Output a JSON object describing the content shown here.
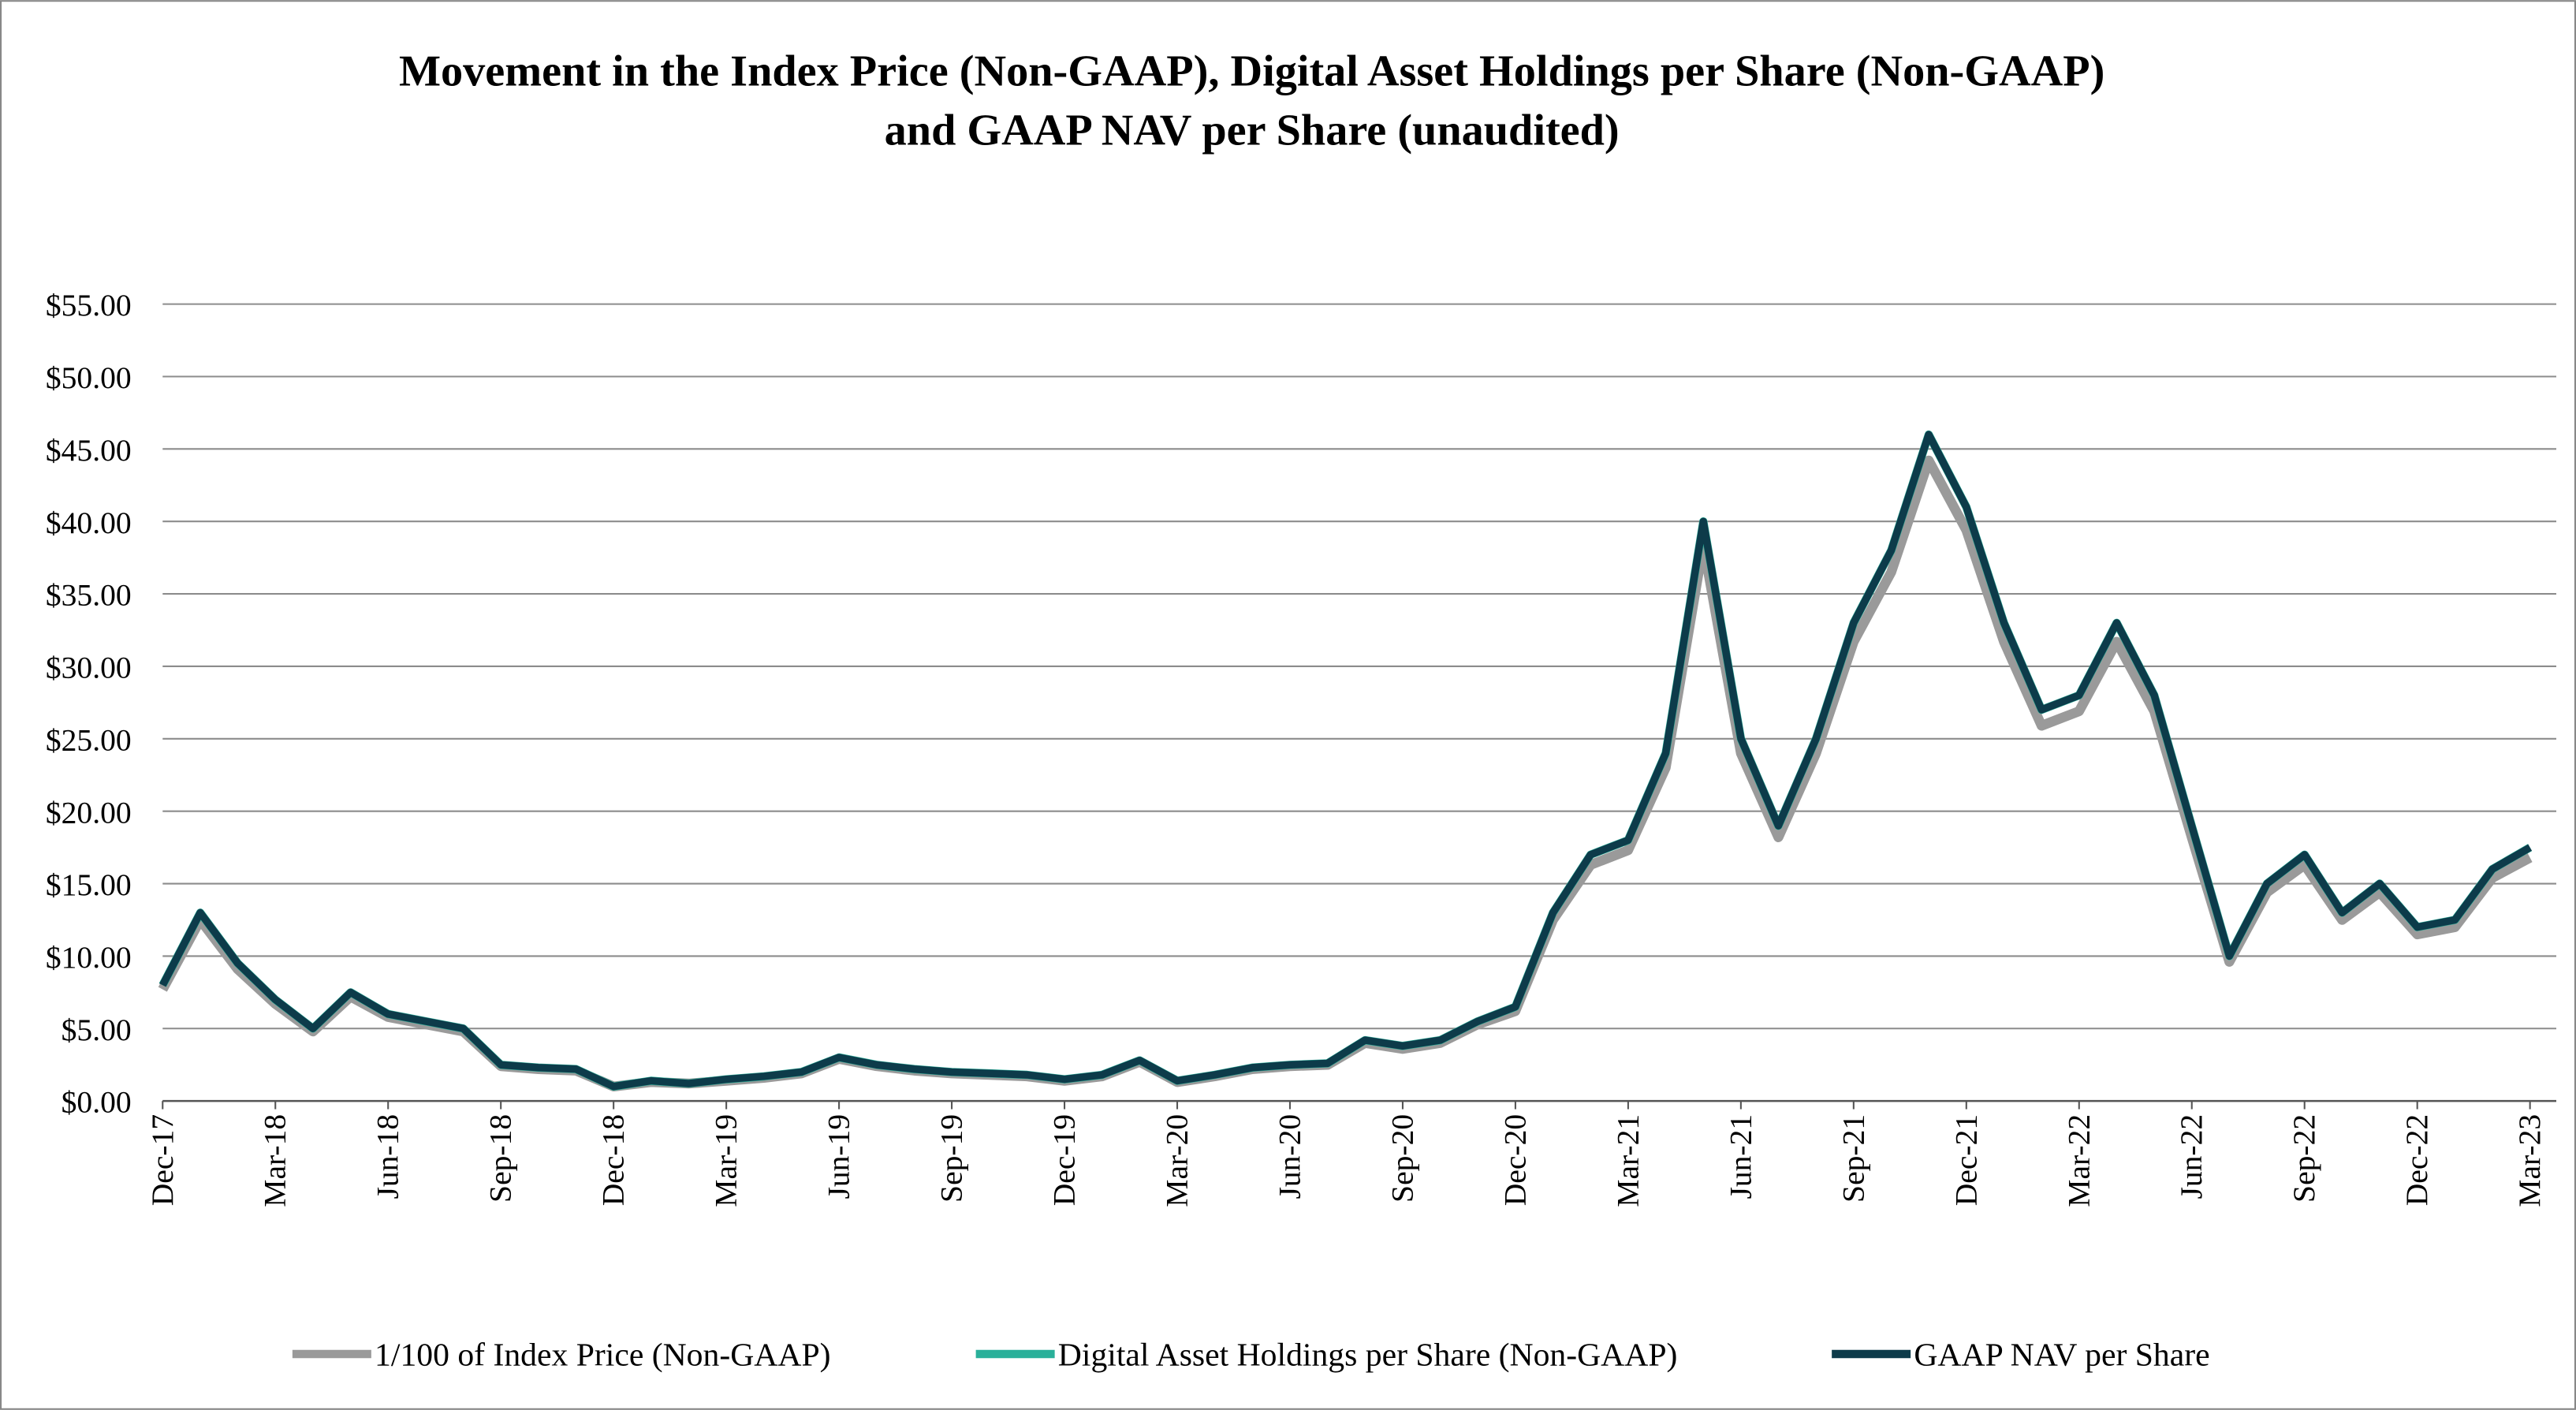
{
  "chart_data": {
    "type": "line",
    "title": "Movement in the Index Price (Non-GAAP), Digital Asset Holdings per Share (Non-GAAP)",
    "subtitle": "and GAAP NAV per Share (unaudited)",
    "x": [
      "Dec-17",
      null,
      null,
      "Mar-18",
      null,
      null,
      "Jun-18",
      null,
      null,
      "Sep-18",
      null,
      null,
      "Dec-18",
      null,
      null,
      "Mar-19",
      null,
      null,
      "Jun-19",
      null,
      null,
      "Sep-19",
      null,
      null,
      "Dec-19",
      null,
      null,
      "Mar-20",
      null,
      null,
      "Jun-20",
      null,
      null,
      "Sep-20",
      null,
      null,
      "Dec-20",
      null,
      null,
      "Mar-21",
      null,
      null,
      "Jun-21",
      null,
      null,
      "Sep-21",
      null,
      null,
      "Dec-21",
      null,
      null,
      "Mar-22",
      null,
      null,
      "Jun-22",
      null,
      null,
      "Sep-22",
      null,
      null,
      "Dec-22",
      null,
      null,
      "Mar-23"
    ],
    "series": [
      {
        "name": "1/100 of Index Price (Non-GAAP)",
        "color": "#9a9a9a",
        "values": [
          7.7,
          12.5,
          9.1,
          6.7,
          4.8,
          7.2,
          5.8,
          5.3,
          4.8,
          2.4,
          2.2,
          2.1,
          1.0,
          1.3,
          1.2,
          1.4,
          1.6,
          1.9,
          2.9,
          2.4,
          2.1,
          1.9,
          1.8,
          1.7,
          1.4,
          1.7,
          2.7,
          1.3,
          1.7,
          2.2,
          2.4,
          2.5,
          4.0,
          3.6,
          4.0,
          5.3,
          6.2,
          12.5,
          16.3,
          17.3,
          23.0,
          38.4,
          24.0,
          18.2,
          24.0,
          31.7,
          36.5,
          44.2,
          39.4,
          31.7,
          25.9,
          26.9,
          31.7,
          26.9,
          18.2,
          9.6,
          14.4,
          16.3,
          12.5,
          14.4,
          11.5,
          12.0,
          15.4,
          16.8
        ]
      },
      {
        "name": "Digital Asset Holdings per Share (Non-GAAP)",
        "color": "#2ab09a",
        "values": [
          8,
          13,
          9.5,
          7,
          5,
          7.5,
          6,
          5.5,
          5,
          2.5,
          2.3,
          2.2,
          1.0,
          1.4,
          1.2,
          1.5,
          1.7,
          2.0,
          3.0,
          2.5,
          2.2,
          2.0,
          1.9,
          1.8,
          1.5,
          1.8,
          2.8,
          1.4,
          1.8,
          2.3,
          2.5,
          2.6,
          4.2,
          3.8,
          4.2,
          5.5,
          6.5,
          13,
          17,
          18,
          24,
          40,
          25,
          19,
          25,
          33,
          38,
          46,
          41,
          33,
          27,
          28,
          33,
          28,
          19,
          10,
          15,
          17,
          13,
          15,
          12,
          12.5,
          16,
          17.5
        ]
      },
      {
        "name": "GAAP NAV per Share",
        "color": "#0d3b4a",
        "values": [
          8,
          13,
          9.5,
          7,
          5,
          7.5,
          6,
          5.5,
          5,
          2.5,
          2.3,
          2.2,
          1.0,
          1.4,
          1.2,
          1.5,
          1.7,
          2.0,
          3.0,
          2.5,
          2.2,
          2.0,
          1.9,
          1.8,
          1.5,
          1.8,
          2.8,
          1.4,
          1.8,
          2.3,
          2.5,
          2.6,
          4.2,
          3.8,
          4.2,
          5.5,
          6.5,
          13,
          17,
          18,
          24,
          40,
          25,
          19,
          25,
          33,
          38,
          46,
          41,
          33,
          27,
          28,
          33,
          28,
          19,
          10,
          15,
          17,
          13,
          15,
          12,
          12.5,
          16,
          17.5
        ]
      }
    ],
    "ylim": [
      0,
      55
    ],
    "yticks": [
      {
        "value": 0,
        "label": "$0.00"
      },
      {
        "value": 5,
        "label": "$5.00"
      },
      {
        "value": 10,
        "label": "$10.00"
      },
      {
        "value": 15,
        "label": "$15.00"
      },
      {
        "value": 20,
        "label": "$20.00"
      },
      {
        "value": 25,
        "label": "$25.00"
      },
      {
        "value": 30,
        "label": "$30.00"
      },
      {
        "value": 35,
        "label": "$35.00"
      },
      {
        "value": 40,
        "label": "$40.00"
      },
      {
        "value": 45,
        "label": "$45.00"
      },
      {
        "value": 50,
        "label": "$50.00"
      },
      {
        "value": 55,
        "label": "$55.00"
      }
    ],
    "grid": true,
    "legend": "bottom"
  }
}
